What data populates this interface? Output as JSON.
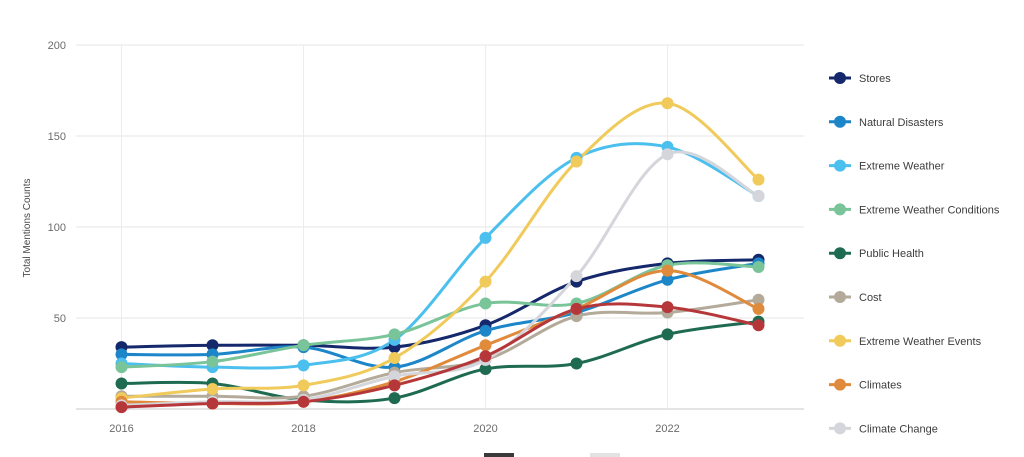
{
  "chart_data": {
    "type": "line",
    "x": [
      2016,
      2017,
      2018,
      2019,
      2020,
      2021,
      2022,
      2023
    ],
    "x_ticks": [
      "2016",
      "2018",
      "2020",
      "2022"
    ],
    "y_ticks": [
      "50",
      "100",
      "150",
      "200"
    ],
    "ylabel": "Total Mentions Counts",
    "xlabel": "",
    "title": "",
    "xlim": [
      2016,
      2023
    ],
    "ylim": [
      0,
      200
    ],
    "grid": true,
    "legend_position": "right",
    "series": [
      {
        "name": "Stores",
        "color": "#14286b",
        "values": [
          34,
          35,
          35,
          34,
          46,
          70,
          80,
          82
        ]
      },
      {
        "name": "Natural Disasters",
        "color": "#1c86c9",
        "values": [
          30,
          30,
          34,
          23,
          43,
          53,
          71,
          80
        ]
      },
      {
        "name": "Extreme Weather",
        "color": "#4bbfee",
        "values": [
          25,
          23,
          24,
          38,
          94,
          138,
          144,
          117
        ]
      },
      {
        "name": "Extreme Weather Conditions",
        "color": "#79c499",
        "values": [
          23,
          26,
          35,
          41,
          58,
          58,
          79,
          78
        ]
      },
      {
        "name": "Public Health",
        "color": "#1f6b52",
        "values": [
          14,
          14,
          5,
          6,
          22,
          25,
          41,
          48
        ]
      },
      {
        "name": "Cost",
        "color": "#b3aa9a",
        "values": [
          7,
          7,
          7,
          20,
          27,
          51,
          53,
          60
        ]
      },
      {
        "name": "Extreme Weather Events",
        "color": "#f0ca5a",
        "values": [
          6,
          11,
          13,
          28,
          70,
          136,
          168,
          126
        ]
      },
      {
        "name": "Climates",
        "color": "#e08a3c",
        "values": [
          4,
          3,
          4,
          15,
          35,
          55,
          76,
          55
        ]
      },
      {
        "name": "Climate Change",
        "color": "#d4d6db",
        "values": [
          2,
          4,
          5,
          18,
          27,
          73,
          140,
          117
        ]
      },
      {
        "name": "",
        "color": "#b6373a",
        "values": [
          1,
          3,
          4,
          13,
          29,
          55,
          56,
          46
        ]
      }
    ]
  }
}
